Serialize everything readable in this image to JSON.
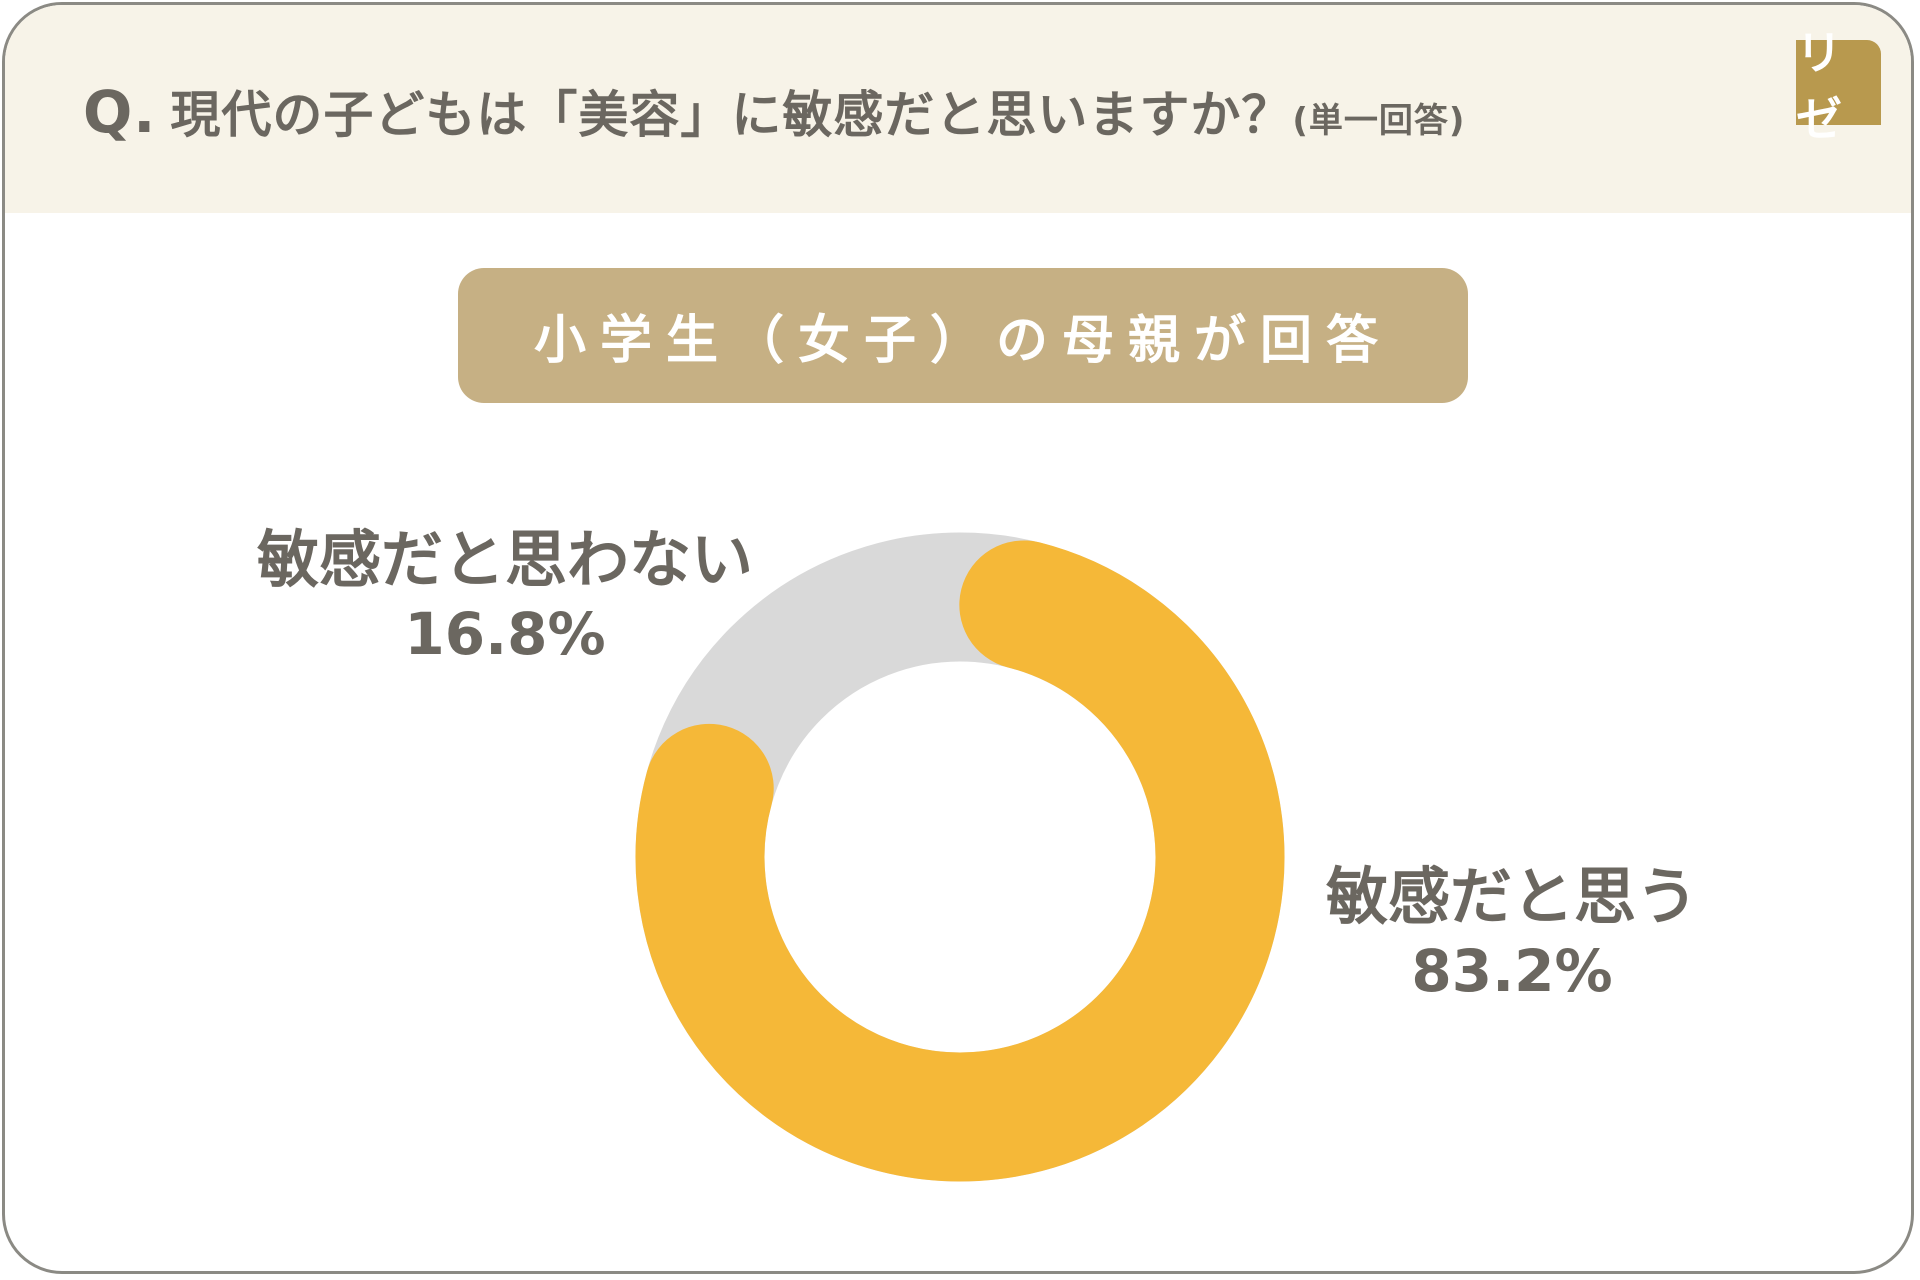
{
  "header": {
    "q_label": "Q.",
    "question": "現代の子どもは「美容」に敏感だと思いますか？",
    "answer_type": "(単一回答)",
    "logo": "リゼ"
  },
  "respondent_label": "小学生（女子）の母親が回答",
  "chart_data": {
    "type": "pie",
    "variant": "donut",
    "title": "",
    "slices": [
      {
        "label": "敏感だと思う",
        "value": 83.2,
        "display": "83.2%",
        "color": "#f5b838"
      },
      {
        "label": "敏感だと思わない",
        "value": 16.8,
        "display": "16.8%",
        "color": "#d9d9d9"
      }
    ],
    "legend": "none (direct labels)"
  }
}
